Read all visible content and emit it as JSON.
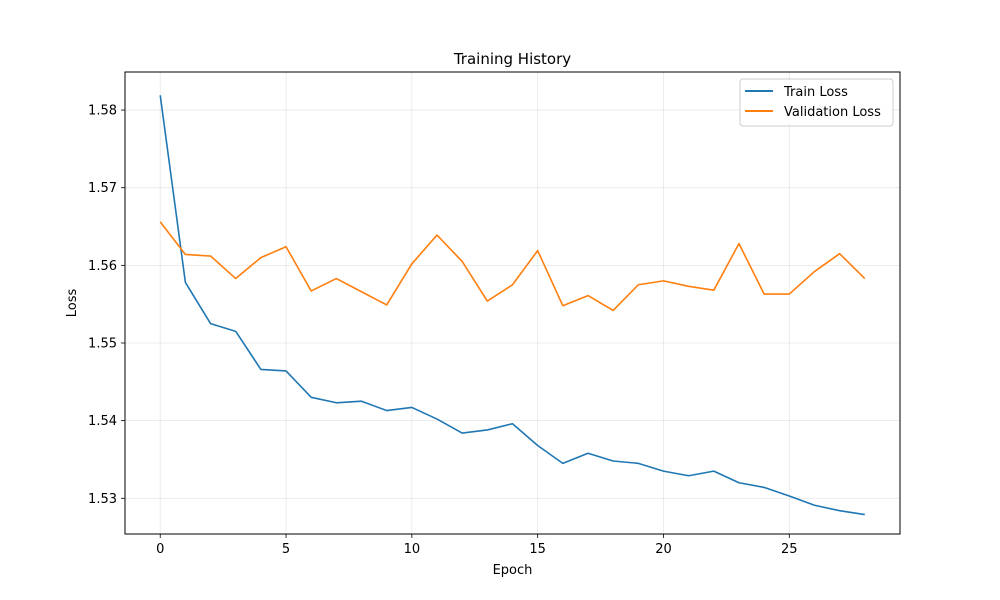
{
  "chart_data": {
    "type": "line",
    "title": "Training History",
    "xlabel": "Epoch",
    "ylabel": "Loss",
    "xlim": [
      -1.4,
      29.4
    ],
    "ylim": [
      1.5254,
      1.5849
    ],
    "xticks": [
      0,
      5,
      10,
      15,
      20,
      25
    ],
    "yticks": [
      1.53,
      1.54,
      1.55,
      1.56,
      1.57,
      1.58
    ],
    "grid": true,
    "legend_position": "top-right",
    "x": [
      0,
      1,
      2,
      3,
      4,
      5,
      6,
      7,
      8,
      9,
      10,
      11,
      12,
      13,
      14,
      15,
      16,
      17,
      18,
      19,
      20,
      21,
      22,
      23,
      24,
      25,
      26,
      27,
      28
    ],
    "series": [
      {
        "name": "Train Loss",
        "color": "#1f77b4",
        "values": [
          1.5819,
          1.5578,
          1.5525,
          1.5515,
          1.5466,
          1.5464,
          1.543,
          1.5423,
          1.5425,
          1.5413,
          1.5417,
          1.5402,
          1.5384,
          1.5388,
          1.5396,
          1.5368,
          1.5345,
          1.5358,
          1.5348,
          1.5345,
          1.5335,
          1.5329,
          1.5335,
          1.532,
          1.5314,
          1.5303,
          1.5291,
          1.5284,
          1.5279
        ]
      },
      {
        "name": "Validation Loss",
        "color": "#ff7f0e",
        "values": [
          1.5656,
          1.5614,
          1.5612,
          1.5583,
          1.561,
          1.5624,
          1.5567,
          1.5583,
          1.5566,
          1.5549,
          1.5602,
          1.5639,
          1.5605,
          1.5554,
          1.5575,
          1.5619,
          1.5548,
          1.5561,
          1.5542,
          1.5575,
          1.558,
          1.5573,
          1.5568,
          1.5628,
          1.5563,
          1.5563,
          1.5592,
          1.5615,
          1.5583
        ]
      }
    ]
  }
}
